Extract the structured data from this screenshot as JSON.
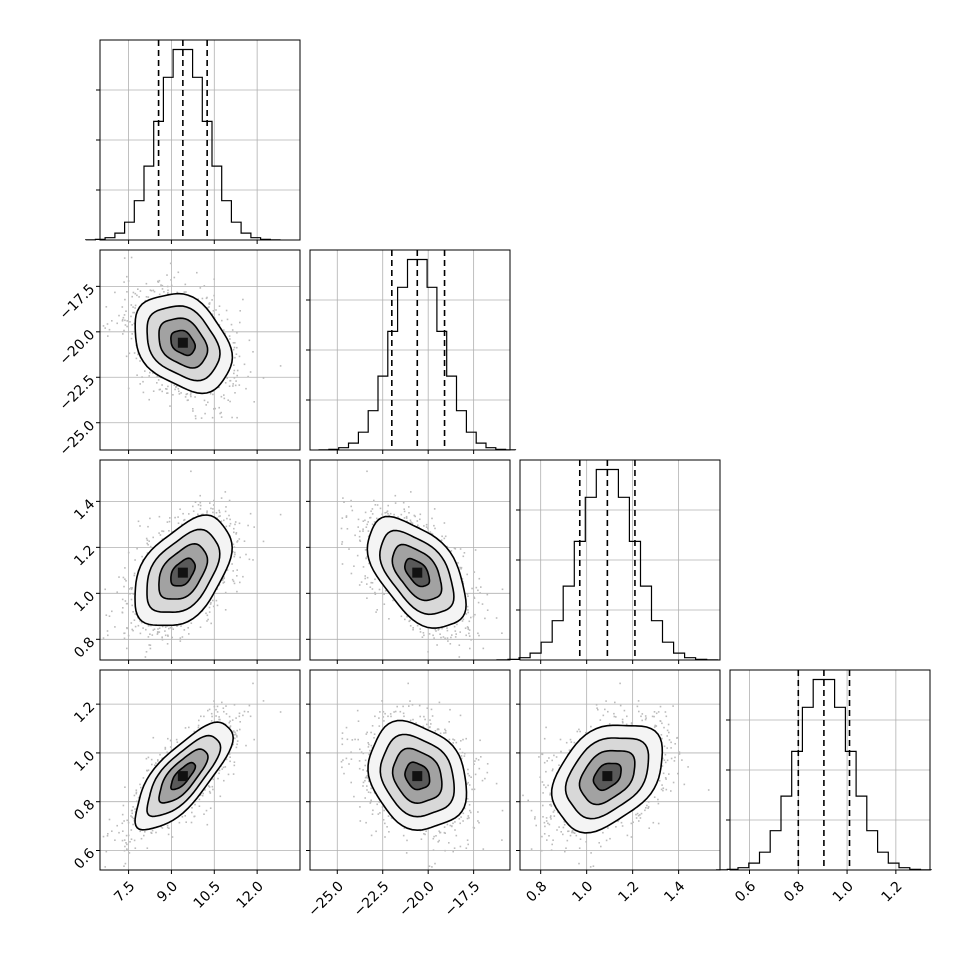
{
  "chart_data": {
    "type": "corner",
    "params": [
      {
        "key": "p0",
        "mean": 9.4,
        "sd": 0.85,
        "lim": [
          6.5,
          13.5
        ],
        "ticks": [
          7.5,
          9.0,
          10.5,
          12.0
        ],
        "ticklabels": [
          "7.5",
          "9.0",
          "10.5",
          "12.0"
        ],
        "quantiles": [
          8.55,
          9.4,
          10.25
        ]
      },
      {
        "key": "p1",
        "mean": -20.6,
        "sd": 1.35,
        "lim": [
          -26.5,
          -15.5
        ],
        "ticks": [
          -25.0,
          -22.5,
          -20.0,
          -17.5
        ],
        "ticklabels": [
          "−25.0",
          "−22.5",
          "−20.0",
          "−17.5"
        ],
        "quantiles": [
          -22.0,
          -20.6,
          -19.1
        ]
      },
      {
        "key": "p2",
        "mean": 1.09,
        "sd": 0.12,
        "lim": [
          0.71,
          1.58
        ],
        "ticks": [
          0.8,
          1.0,
          1.2,
          1.4
        ],
        "ticklabels": [
          "0.8",
          "1.0",
          "1.2",
          "1.4"
        ],
        "quantiles": [
          0.97,
          1.09,
          1.21
        ]
      },
      {
        "key": "p3",
        "mean": 0.905,
        "sd": 0.11,
        "lim": [
          0.52,
          1.34
        ],
        "ticks": [
          0.6,
          0.8,
          1.0,
          1.2
        ],
        "ticklabels": [
          "0.6",
          "0.8",
          "1.0",
          "1.2"
        ],
        "quantiles": [
          0.8,
          0.905,
          1.01
        ]
      }
    ],
    "correlations": [
      [
        1.0,
        -0.3,
        0.45,
        0.75
      ],
      [
        -0.3,
        1.0,
        -0.5,
        -0.2
      ],
      [
        0.45,
        -0.5,
        1.0,
        0.35
      ],
      [
        0.75,
        -0.2,
        0.35,
        1.0
      ]
    ],
    "histogram_bins": 20,
    "contour_levels_sigma": [
      0.5,
      1.0,
      1.5,
      2.0
    ],
    "grid": true,
    "show_scatter": true,
    "title": "",
    "xlabel": "",
    "ylabel": ""
  }
}
